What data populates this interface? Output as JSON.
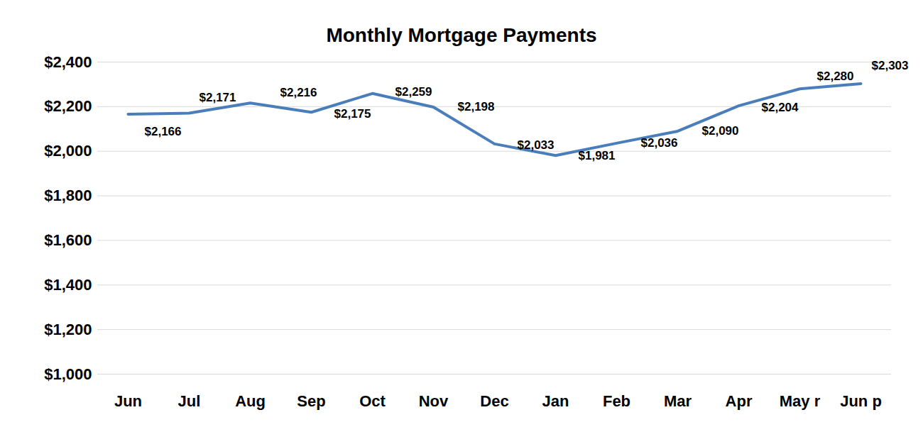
{
  "chart_data": {
    "type": "line",
    "title": "Monthly Mortgage Payments",
    "categories": [
      "Jun",
      "Jul",
      "Aug",
      "Sep",
      "Oct",
      "Nov",
      "Dec",
      "Jan",
      "Feb",
      "Mar",
      "Apr",
      "May r",
      "Jun p"
    ],
    "values": [
      2166,
      2171,
      2216,
      2175,
      2259,
      2198,
      2033,
      1981,
      2036,
      2090,
      2204,
      2280,
      2303
    ],
    "value_labels": [
      "$2,166",
      "$2,171",
      "$2,216",
      "$2,175",
      "$2,259",
      "$2,198",
      "$2,033",
      "$1,981",
      "$2,036",
      "$2,090",
      "$2,204",
      "$2,280",
      "$2,303"
    ],
    "color": "#4a7ebb",
    "ylim": [
      1000,
      2400
    ],
    "yticks": [
      {
        "value": 1000,
        "label": "$1,000"
      },
      {
        "value": 1200,
        "label": "$1,200"
      },
      {
        "value": 1400,
        "label": "$1,400"
      },
      {
        "value": 1600,
        "label": "$1,600"
      },
      {
        "value": 1800,
        "label": "$1,800"
      },
      {
        "value": 2000,
        "label": "$2,000"
      },
      {
        "value": 2200,
        "label": "$2,200"
      },
      {
        "value": 2400,
        "label": "$2,400"
      }
    ],
    "grid": true,
    "data_labels": true
  }
}
